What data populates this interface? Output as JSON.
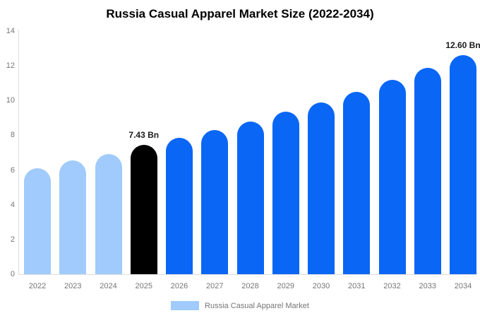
{
  "title": "Russia Casual Apparel Market Size (2022-2034)",
  "legend": {
    "label": "Russia Casual Apparel Market",
    "swatch_color": "#A0CBFC"
  },
  "colors": {
    "historical_bar": "#A0CBFC",
    "base_year_bar": "#000000",
    "forecast_bar": "#0A66F5",
    "axis_line": "#dddddd",
    "axis_text": "#757575",
    "annotation_text": "#1a1a1a"
  },
  "chart_data": {
    "type": "bar",
    "title": "Russia Casual Apparel Market Size (2022-2034)",
    "xlabel": "",
    "ylabel": "",
    "unit": "Bn",
    "categories": [
      "2022",
      "2023",
      "2024",
      "2025",
      "2026",
      "2027",
      "2028",
      "2029",
      "2030",
      "2031",
      "2032",
      "2033",
      "2034"
    ],
    "values": [
      6.1,
      6.55,
      6.9,
      7.43,
      7.85,
      8.3,
      8.8,
      9.35,
      9.9,
      10.5,
      11.2,
      11.9,
      12.6
    ],
    "bar_colors": [
      "#A0CBFC",
      "#A0CBFC",
      "#A0CBFC",
      "#000000",
      "#0A66F5",
      "#0A66F5",
      "#0A66F5",
      "#0A66F5",
      "#0A66F5",
      "#0A66F5",
      "#0A66F5",
      "#0A66F5",
      "#0A66F5"
    ],
    "annotations": [
      {
        "index": 3,
        "text": "7.43 Bn"
      },
      {
        "index": 12,
        "text": "12.60 Bn"
      }
    ],
    "ylim": [
      0,
      14
    ],
    "yticks": [
      0,
      2,
      4,
      6,
      8,
      10,
      12,
      14
    ],
    "grid": false,
    "legend_position": "bottom",
    "legend_entries": [
      "Russia Casual Apparel Market"
    ]
  }
}
